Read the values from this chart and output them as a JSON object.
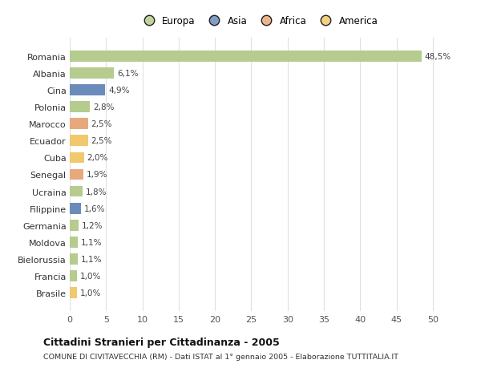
{
  "countries": [
    "Romania",
    "Albania",
    "Cina",
    "Polonia",
    "Marocco",
    "Ecuador",
    "Cuba",
    "Senegal",
    "Ucraina",
    "Filippine",
    "Germania",
    "Moldova",
    "Bielorussia",
    "Francia",
    "Brasile"
  ],
  "values": [
    48.5,
    6.1,
    4.9,
    2.8,
    2.5,
    2.5,
    2.0,
    1.9,
    1.8,
    1.6,
    1.2,
    1.1,
    1.1,
    1.0,
    1.0
  ],
  "bar_colors": [
    "#b5cc8e",
    "#b5cc8e",
    "#6b8cba",
    "#b5cc8e",
    "#e8a87c",
    "#f0c96e",
    "#f0c96e",
    "#e8a87c",
    "#b5cc8e",
    "#6b8cba",
    "#b5cc8e",
    "#b5cc8e",
    "#b5cc8e",
    "#b5cc8e",
    "#f0c96e"
  ],
  "legend_labels": [
    "Europa",
    "Asia",
    "Africa",
    "America"
  ],
  "legend_colors": [
    "#b5cc8e",
    "#6b8cba",
    "#e8a87c",
    "#f0c96e"
  ],
  "title": "Cittadini Stranieri per Cittadinanza - 2005",
  "subtitle": "COMUNE DI CIVITAVECCHIA (RM) - Dati ISTAT al 1° gennaio 2005 - Elaborazione TUTTITALIA.IT",
  "xlim": [
    0,
    52
  ],
  "xticks": [
    0,
    5,
    10,
    15,
    20,
    25,
    30,
    35,
    40,
    45,
    50
  ],
  "background_color": "#ffffff",
  "grid_color": "#e0e0e0"
}
